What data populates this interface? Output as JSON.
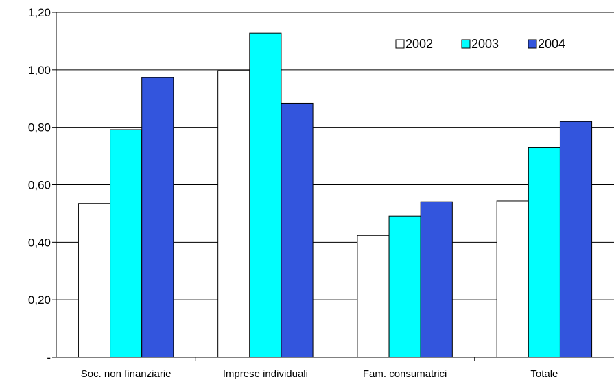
{
  "chart_data": {
    "type": "bar",
    "categories": [
      "Soc. non finanziarie",
      "Imprese individuali",
      "Fam. consumatrici",
      "Totale"
    ],
    "series": [
      {
        "name": "2002",
        "values": [
          0.535,
          0.997,
          0.424,
          0.544
        ],
        "color": "#ffffff"
      },
      {
        "name": "2003",
        "values": [
          0.792,
          1.128,
          0.491,
          0.729
        ],
        "color": "#00ffff"
      },
      {
        "name": "2004",
        "values": [
          0.973,
          0.884,
          0.541,
          0.82
        ],
        "color": "#3355dd"
      }
    ],
    "yticks": [
      "-",
      "0,20",
      "0,40",
      "0,60",
      "0,80",
      "1,00",
      "1,20"
    ],
    "ylim": [
      0,
      1.2
    ],
    "grid": true,
    "legend": "top-right",
    "title": "",
    "xlabel": "",
    "ylabel": ""
  }
}
